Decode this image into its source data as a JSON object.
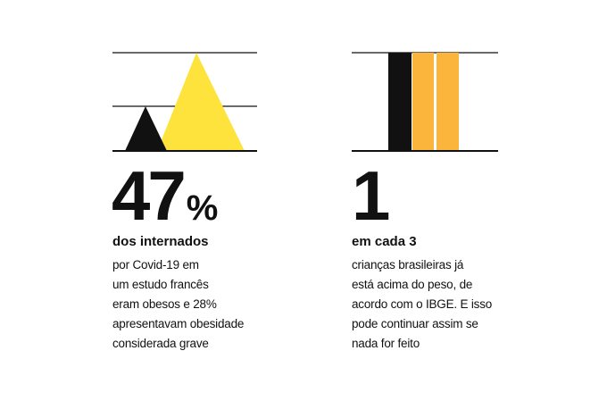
{
  "colors": {
    "ink": "#111111",
    "yellow": "#FFE33D",
    "orange": "#FBB53C",
    "background": "#ffffff"
  },
  "left": {
    "graphic": {
      "type": "triangles",
      "shapes": [
        {
          "name": "small-black-triangle",
          "color": "#111111"
        },
        {
          "name": "large-yellow-triangle",
          "color": "#FFE33D"
        }
      ]
    },
    "stat_value": "47",
    "stat_unit": "%",
    "headline": "dos internados",
    "body_lines": [
      "por Covid-19 em",
      "um estudo francês",
      "eram obesos e 28%",
      "apresentavam obesidade",
      "considerada grave"
    ]
  },
  "right": {
    "graphic": {
      "type": "bars",
      "bars": [
        {
          "name": "black-bar",
          "color": "#111111"
        },
        {
          "name": "orange-bar-1",
          "color": "#FBB53C"
        },
        {
          "name": "orange-bar-2",
          "color": "#FBB53C"
        }
      ]
    },
    "stat_value": "1",
    "headline": "em cada 3",
    "body_lines": [
      "crianças brasileiras já",
      "está acima do peso, de",
      "acordo com o IBGE. E isso",
      "pode continuar assim se",
      "nada for feito"
    ]
  }
}
